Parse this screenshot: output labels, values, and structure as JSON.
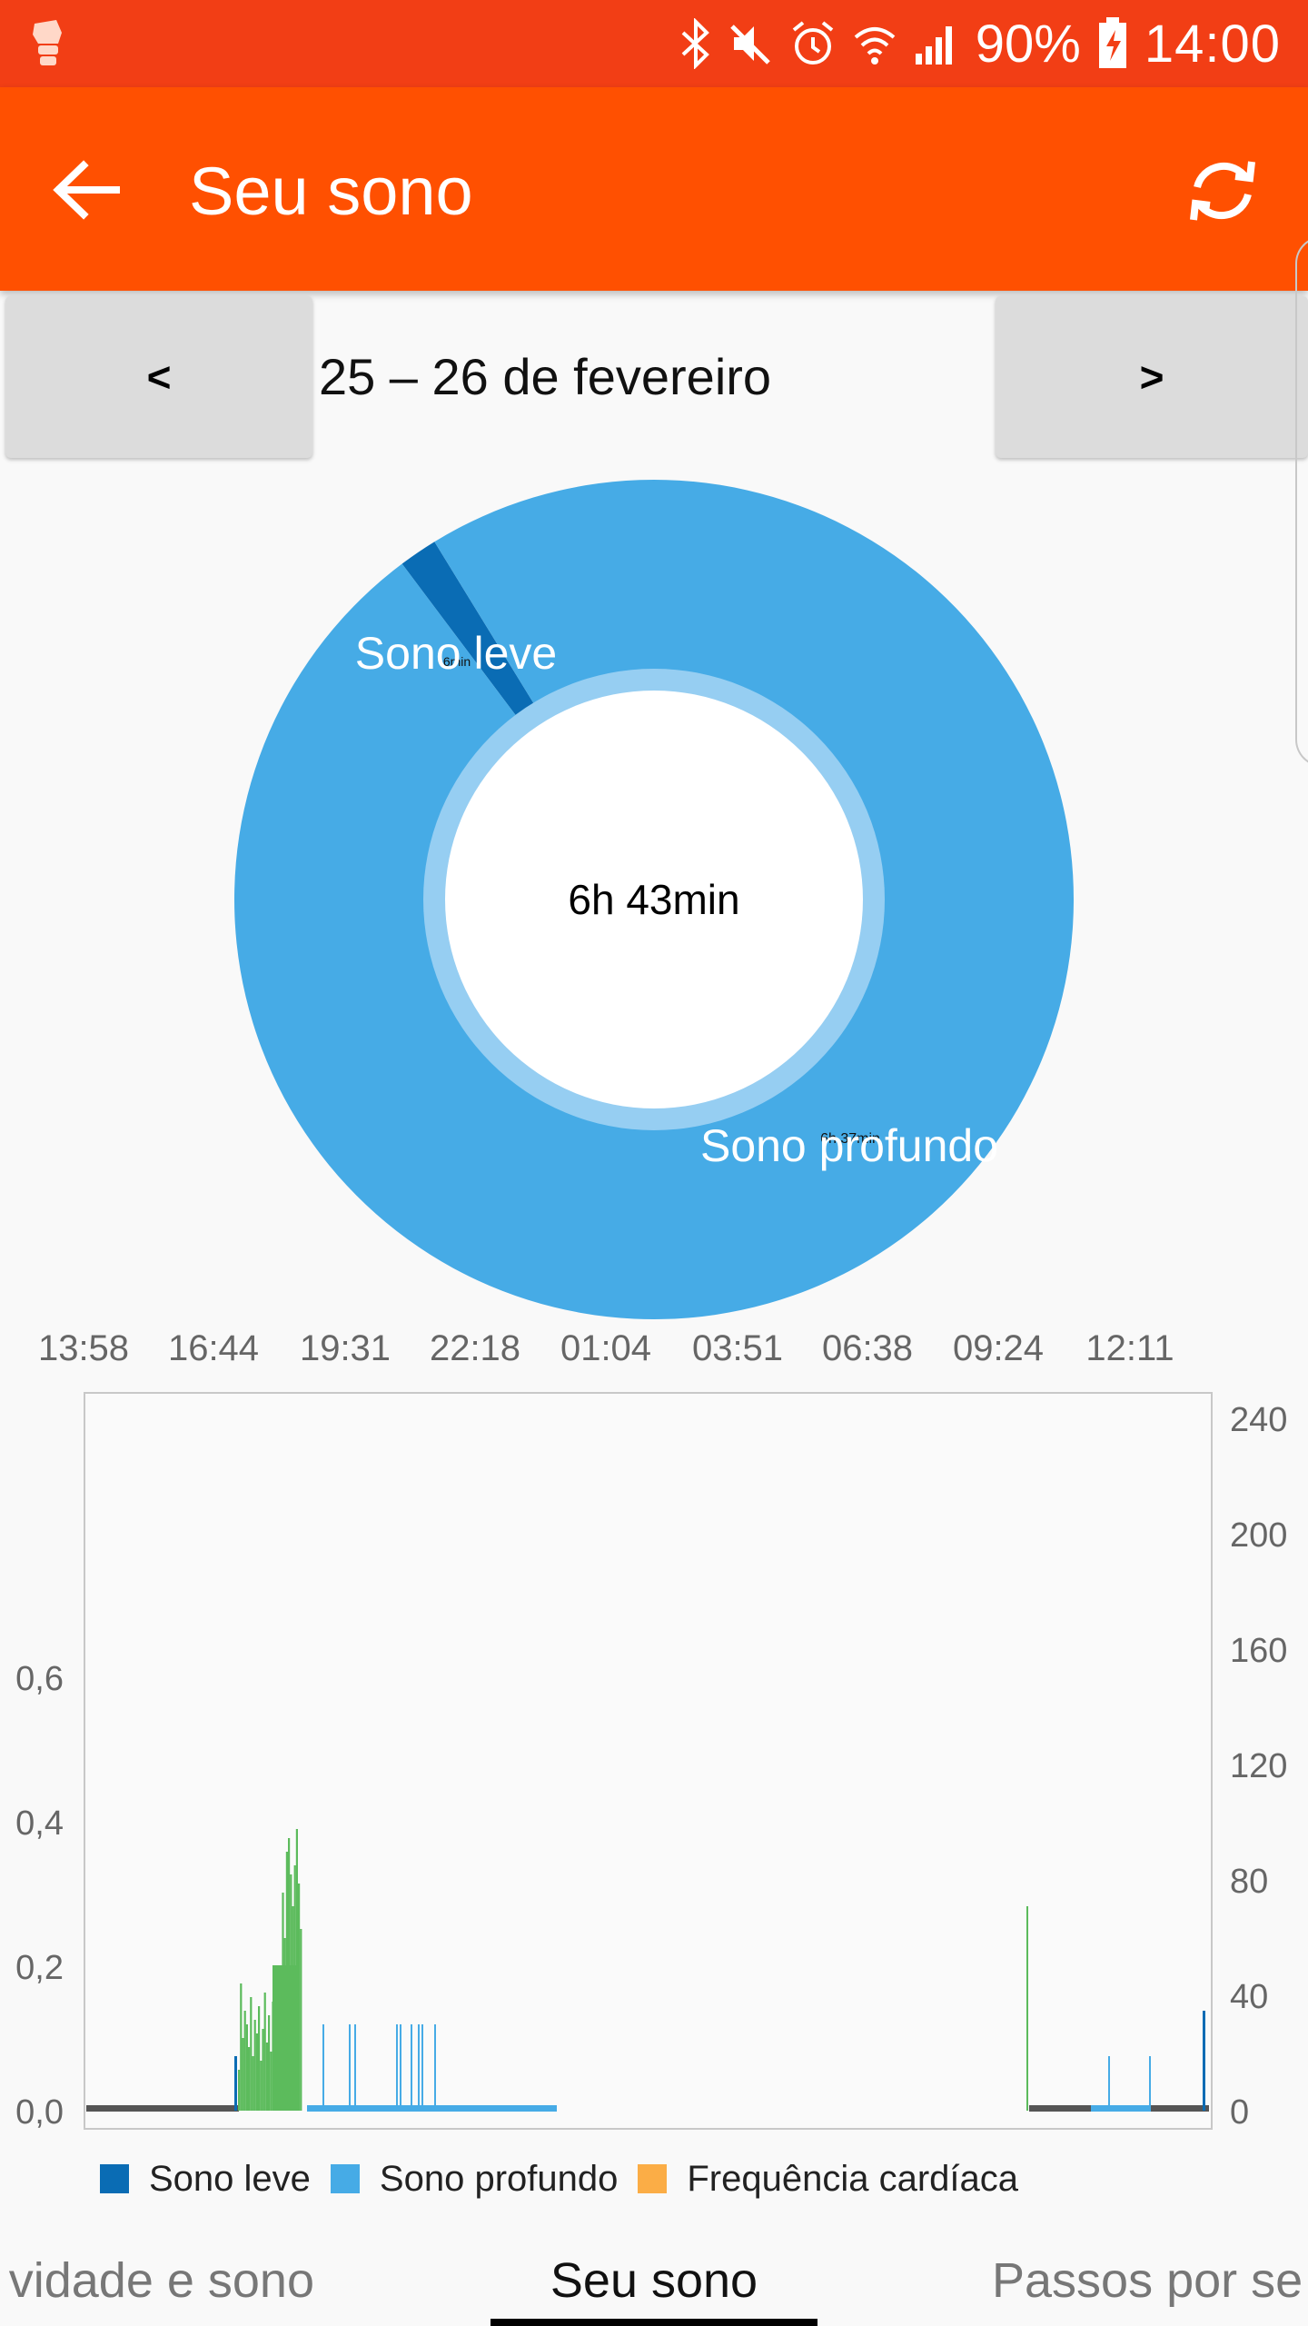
{
  "status_bar": {
    "battery": "90%",
    "time": "14:00",
    "icons": [
      "app-notification-icon",
      "bluetooth-icon",
      "mute-icon",
      "alarm-icon",
      "wifi-icon",
      "signal-icon",
      "battery-charging-icon"
    ]
  },
  "app_bar": {
    "title": "Seu sono",
    "back_icon": "arrow-left-icon",
    "refresh_icon": "refresh-icon"
  },
  "date_nav": {
    "prev_label": "<",
    "next_label": ">",
    "date": "25 – 26 de fevereiro"
  },
  "donut": {
    "center_label": "6h 43min",
    "slices": [
      {
        "name": "Sono leve",
        "value_label": "6min",
        "minutes": 6,
        "color": "#0a6cb4"
      },
      {
        "name": "Sono profundo",
        "value_label": "6h 37min",
        "minutes": 397,
        "color": "#46abe6"
      }
    ]
  },
  "colors": {
    "status_bar": "#f23e15",
    "app_bar": "#ff5001",
    "light_sleep": "#0a6cb4",
    "deep_sleep": "#46abe6",
    "heart_rate": "#fbad46",
    "activity": "#5cbb5c"
  },
  "chart_data": {
    "type": "bar",
    "x_ticks": [
      "13:58",
      "16:44",
      "19:31",
      "22:18",
      "01:04",
      "03:51",
      "06:38",
      "09:24",
      "12:11"
    ],
    "y_left_ticks": [
      "0,0",
      "0,2",
      "0,4",
      "0,6"
    ],
    "y_right_ticks": [
      "0",
      "40",
      "80",
      "120",
      "160",
      "200",
      "240"
    ],
    "y_left_range": [
      0,
      1.0
    ],
    "y_right_range": [
      0,
      240
    ],
    "legend": [
      "Sono leve",
      "Sono profundo",
      "Frequência cardíaca"
    ],
    "legend_colors": [
      "#0a6cb4",
      "#46abe6",
      "#fbad46"
    ]
  },
  "tabs": [
    {
      "label": "vidade e sono"
    },
    {
      "label": "Seu sono"
    },
    {
      "label": "Passos por se"
    }
  ]
}
